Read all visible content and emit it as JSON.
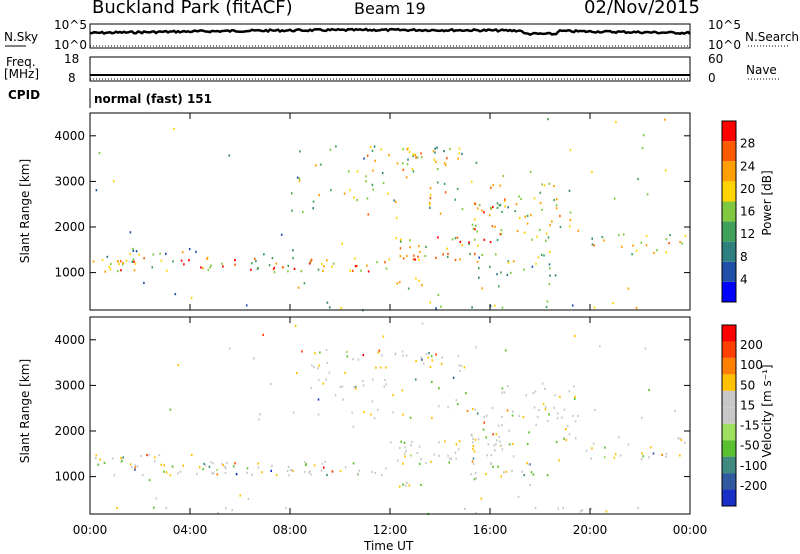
{
  "header": {
    "station": "Buckland Park (fitACF)",
    "beam": "Beam 19",
    "date": "02/Nov/2015"
  },
  "mini_panels": {
    "nsky_label": "N.Sky",
    "nsky_ticks": [
      "10^5",
      "10^0"
    ],
    "nsearch_label": "N.Search",
    "nsearch_ticks": [
      "10^5",
      "10^0"
    ],
    "freq_label": "Freq.",
    "freq_unit": "[MHz]",
    "freq_ticks": [
      "18",
      "8"
    ],
    "nave_label": "Nave",
    "nave_ticks": [
      "60",
      "0"
    ],
    "cpid_label": "CPID",
    "cpid_value": "normal (fast) 151"
  },
  "x_axis": {
    "title": "Time UT",
    "ticks": [
      "00:00",
      "04:00",
      "08:00",
      "12:00",
      "16:00",
      "20:00",
      "00:00"
    ],
    "range_hours": [
      0,
      24
    ]
  },
  "colors": {
    "power": [
      "#0000ff",
      "#1f4fa8",
      "#2f7f7f",
      "#3fa05a",
      "#7fc840",
      "#ffd400",
      "#ff9f00",
      "#ff5a00",
      "#ff0000"
    ],
    "velocity": [
      "#1a2fc8",
      "#2f5a9f",
      "#3f8a7f",
      "#5ac030",
      "#9fdf5f",
      "#c8c8c8",
      "#c8c8c8",
      "#ffc000",
      "#ff8000",
      "#ff4000",
      "#ff0000"
    ]
  },
  "chart_data": [
    {
      "type": "heatmap",
      "title": "Power",
      "ylabel": "Slant Range [km]",
      "yticks": [
        "1000",
        "2000",
        "3000",
        "4000"
      ],
      "ylim": [
        180,
        4500
      ],
      "x_ticks": [
        "00:00",
        "04:00",
        "08:00",
        "12:00",
        "16:00",
        "20:00",
        "00:00"
      ],
      "colorbar": {
        "label": "Power [dB]",
        "ticks": [
          "4",
          "8",
          "12",
          "16",
          "20",
          "24",
          "28"
        ],
        "range": [
          0,
          30
        ]
      }
    },
    {
      "type": "heatmap",
      "title": "Velocity",
      "ylabel": "Slant Range [km]",
      "yticks": [
        "1000",
        "2000",
        "3000",
        "4000"
      ],
      "ylim": [
        180,
        4500
      ],
      "x_ticks": [
        "00:00",
        "04:00",
        "08:00",
        "12:00",
        "16:00",
        "20:00",
        "00:00"
      ],
      "colorbar": {
        "label": "Velocity [m s⁻¹]",
        "ticks": [
          "200",
          "100",
          "50",
          "15",
          "-15",
          "-50",
          "-100",
          "-200"
        ],
        "range": [
          -250,
          250
        ]
      }
    }
  ]
}
